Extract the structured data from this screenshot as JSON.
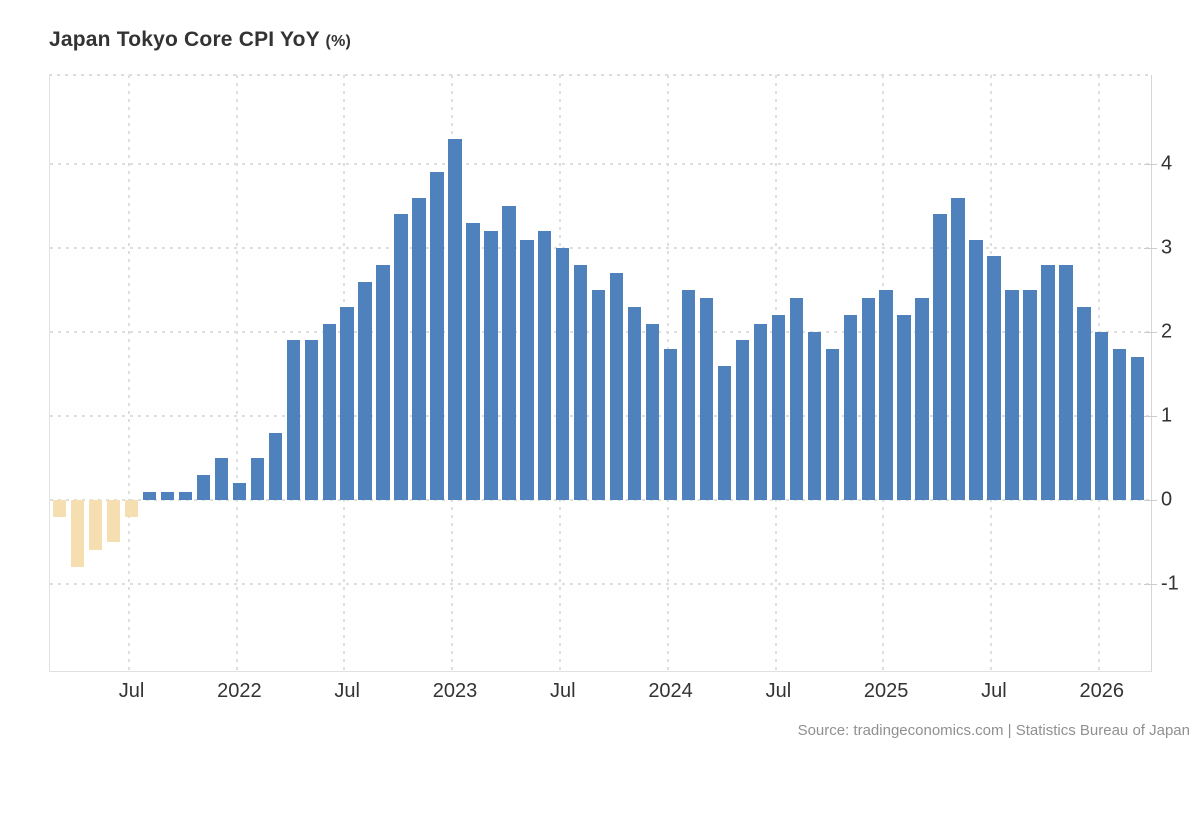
{
  "header": {
    "title": "Japan Tokyo Core CPI YoY",
    "unit_label": "(%)"
  },
  "footer": {
    "source_text": "Source: tradingeconomics.com | Statistics Bureau of Japan"
  },
  "chart_data": {
    "type": "bar",
    "title": "Japan Tokyo Core CPI YoY (%)",
    "xlabel": "",
    "ylabel": "",
    "grid": "dotted",
    "legend": "none",
    "ylim": [
      -2.05,
      5.05
    ],
    "y_ticks": [
      -1,
      0,
      1,
      2,
      3,
      4
    ],
    "y_tick_side": "right",
    "bar_colors": {
      "positive": "#4f81bd",
      "negative": "#f5deb0"
    },
    "x": [
      "Mar 2021",
      "Apr 2021",
      "May 2021",
      "Jun 2021",
      "Jul 2021",
      "Aug 2021",
      "Sep 2021",
      "Oct 2021",
      "Nov 2021",
      "Dec 2021",
      "Jan 2022",
      "Feb 2022",
      "Mar 2022",
      "Apr 2022",
      "May 2022",
      "Jun 2022",
      "Jul 2022",
      "Aug 2022",
      "Sep 2022",
      "Oct 2022",
      "Nov 2022",
      "Dec 2022",
      "Jan 2023",
      "Feb 2023",
      "Mar 2023",
      "Apr 2023",
      "May 2023",
      "Jun 2023",
      "Jul 2023",
      "Aug 2023",
      "Sep 2023",
      "Oct 2023",
      "Nov 2023",
      "Dec 2023",
      "Jan 2024",
      "Feb 2024",
      "Mar 2024",
      "Apr 2024",
      "May 2024",
      "Jun 2024",
      "Jul 2024",
      "Aug 2024",
      "Sep 2024",
      "Oct 2024",
      "Nov 2024",
      "Dec 2024",
      "Jan 2025",
      "Feb 2025",
      "Mar 2025",
      "Apr 2025",
      "May 2025",
      "Jun 2025",
      "Jul 2025",
      "Aug 2025",
      "Sep 2025",
      "Oct 2025",
      "Nov 2025",
      "Dec 2025",
      "Jan 2026",
      "Feb 2026",
      "Mar 2026"
    ],
    "values": [
      -0.2,
      -0.8,
      -0.6,
      -0.5,
      -0.2,
      0.1,
      0.1,
      0.1,
      0.3,
      0.5,
      0.2,
      0.5,
      0.8,
      1.9,
      1.9,
      2.1,
      2.3,
      2.6,
      2.8,
      3.4,
      3.6,
      3.9,
      4.3,
      3.3,
      3.2,
      3.5,
      3.1,
      3.2,
      3.0,
      2.8,
      2.5,
      2.7,
      2.3,
      2.1,
      1.8,
      2.5,
      2.4,
      1.6,
      1.9,
      2.1,
      2.2,
      2.4,
      2.0,
      1.8,
      2.2,
      2.4,
      2.5,
      2.2,
      2.4,
      3.4,
      3.6,
      3.1,
      2.9,
      2.5,
      2.5,
      2.8,
      2.8,
      2.3,
      2.0,
      1.8,
      1.7
    ],
    "x_ticks": [
      {
        "index": 4,
        "label": "Jul"
      },
      {
        "index": 10,
        "label": "2022"
      },
      {
        "index": 16,
        "label": "Jul"
      },
      {
        "index": 22,
        "label": "2023"
      },
      {
        "index": 28,
        "label": "Jul"
      },
      {
        "index": 34,
        "label": "2024"
      },
      {
        "index": 40,
        "label": "Jul"
      },
      {
        "index": 46,
        "label": "2025"
      },
      {
        "index": 52,
        "label": "Jul"
      },
      {
        "index": 58,
        "label": "2026"
      }
    ]
  }
}
